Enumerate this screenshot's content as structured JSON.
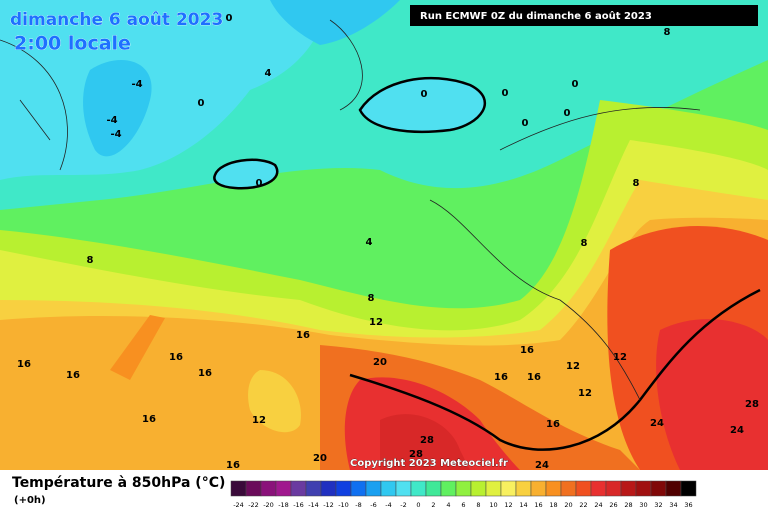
{
  "header": {
    "title": "dimanche 6 août 2023",
    "time": "2:00 locale",
    "run": "Run ECMWF 0Z du dimanche 6 août 2023"
  },
  "copyright": "Copyright 2023 Meteociel.fr",
  "footer": {
    "title": "Température à 850hPa (°C)",
    "subtitle": "(+0h)"
  },
  "legend": {
    "ticks": [
      "-24",
      "-22",
      "-20",
      "-18",
      "-16",
      "-14",
      "-12",
      "-10",
      "-8",
      "-6",
      "-4",
      "-2",
      "0",
      "2",
      "4",
      "6",
      "8",
      "10",
      "12",
      "14",
      "16",
      "18",
      "20",
      "22",
      "24",
      "26",
      "28",
      "30",
      "32",
      "34",
      "36"
    ],
    "colors": [
      "#3a0a3a",
      "#6a0b5a",
      "#8a127a",
      "#a0188e",
      "#6a3aa0",
      "#4040b0",
      "#2030c0",
      "#1040e0",
      "#1070f0",
      "#1aa0f0",
      "#30c8f0",
      "#50e0f0",
      "#40e8c8",
      "#40e898",
      "#60f060",
      "#90f040",
      "#b8f030",
      "#e0f040",
      "#f8f060",
      "#f8d040",
      "#f8b030",
      "#f89020",
      "#f07020",
      "#f05020",
      "#e83030",
      "#d82828",
      "#b81818",
      "#a01010",
      "#800808",
      "#500000",
      "#000000"
    ]
  },
  "contour_labels": [
    "0",
    "8",
    "4",
    "-4",
    "0",
    "0",
    "0",
    "0",
    "-4",
    "-4",
    "0",
    "0",
    "0",
    "8",
    "4",
    "8",
    "8",
    "8",
    "12",
    "16",
    "16",
    "16",
    "16",
    "20",
    "12",
    "16",
    "16",
    "16",
    "16",
    "12",
    "12",
    "16",
    "12",
    "28",
    "24",
    "24",
    "16",
    "28",
    "28",
    "16",
    "20",
    "24"
  ]
}
